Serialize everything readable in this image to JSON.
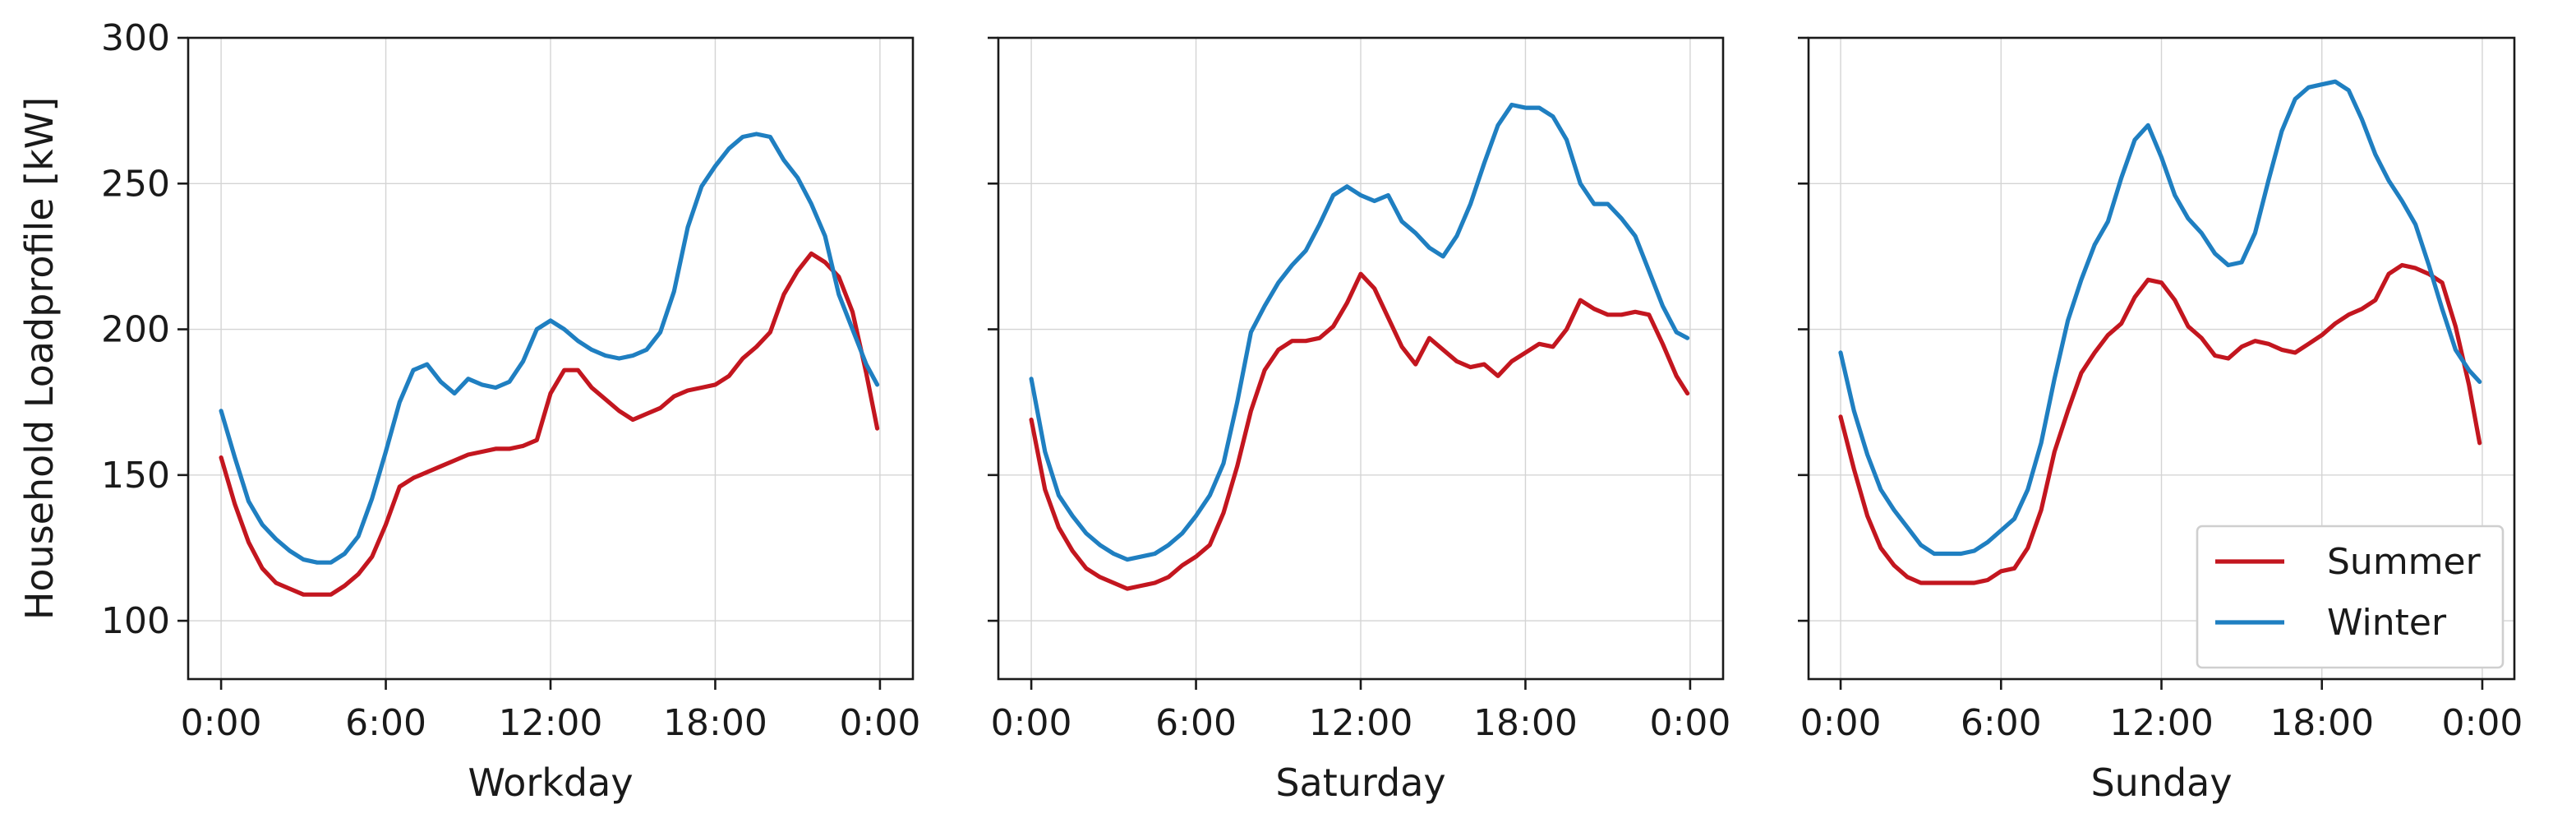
{
  "chart_data": {
    "type": "line",
    "layout": "3 panels side by side, shared y-axis",
    "ylabel": "Household Loadprofile [kW]",
    "ylim": [
      80,
      300
    ],
    "yticks": [
      "100",
      "150",
      "200",
      "250",
      "300"
    ],
    "xticks": [
      "0:00",
      "6:00",
      "12:00",
      "18:00",
      "0:00"
    ],
    "xlim_hours": [
      -1.2,
      25.2
    ],
    "grid": true,
    "legend": {
      "position": "lower-right",
      "panel": 2,
      "entries": [
        "Summer",
        "Winter"
      ]
    },
    "colors": {
      "Summer": "#c3161f",
      "Winter": "#1f7fc1"
    },
    "panels": [
      {
        "xlabel": "Workday",
        "series": [
          {
            "name": "Summer",
            "x": [
              0,
              0.5,
              1,
              1.5,
              2,
              2.5,
              3,
              3.5,
              4,
              4.5,
              5,
              5.5,
              6,
              6.5,
              7,
              7.5,
              8,
              8.5,
              9,
              9.5,
              10,
              10.5,
              11,
              11.5,
              12,
              12.5,
              13,
              13.5,
              14,
              14.5,
              15,
              15.5,
              16,
              16.5,
              17,
              17.5,
              18,
              18.5,
              19,
              19.5,
              20,
              20.5,
              21,
              21.5,
              22,
              22.5,
              23,
              23.5,
              23.9
            ],
            "y": [
              156,
              140,
              127,
              118,
              113,
              111,
              109,
              109,
              109,
              112,
              116,
              122,
              133,
              146,
              149,
              151,
              153,
              155,
              157,
              158,
              159,
              159,
              160,
              162,
              178,
              186,
              186,
              180,
              176,
              172,
              169,
              171,
              173,
              177,
              179,
              180,
              181,
              184,
              190,
              194,
              199,
              212,
              220,
              226,
              223,
              218,
              206,
              185,
              166
            ]
          },
          {
            "name": "Winter",
            "x": [
              0,
              0.5,
              1,
              1.5,
              2,
              2.5,
              3,
              3.5,
              4,
              4.5,
              5,
              5.5,
              6,
              6.5,
              7,
              7.5,
              8,
              8.5,
              9,
              9.5,
              10,
              10.5,
              11,
              11.5,
              12,
              12.5,
              13,
              13.5,
              14,
              14.5,
              15,
              15.5,
              16,
              16.5,
              17,
              17.5,
              18,
              18.5,
              19,
              19.5,
              20,
              20.5,
              21,
              21.5,
              22,
              22.5,
              23,
              23.5,
              23.9
            ],
            "y": [
              172,
              156,
              141,
              133,
              128,
              124,
              121,
              120,
              120,
              123,
              129,
              142,
              158,
              175,
              186,
              188,
              182,
              178,
              183,
              181,
              180,
              182,
              189,
              200,
              203,
              200,
              196,
              193,
              191,
              190,
              191,
              193,
              199,
              213,
              235,
              249,
              256,
              262,
              266,
              267,
              266,
              258,
              252,
              243,
              232,
              212,
              200,
              188,
              181
            ]
          }
        ]
      },
      {
        "xlabel": "Saturday",
        "series": [
          {
            "name": "Summer",
            "x": [
              0,
              0.5,
              1,
              1.5,
              2,
              2.5,
              3,
              3.5,
              4,
              4.5,
              5,
              5.5,
              6,
              6.5,
              7,
              7.5,
              8,
              8.5,
              9,
              9.5,
              10,
              10.5,
              11,
              11.5,
              12,
              12.5,
              13,
              13.5,
              14,
              14.5,
              15,
              15.5,
              16,
              16.5,
              17,
              17.5,
              18,
              18.5,
              19,
              19.5,
              20,
              20.5,
              21,
              21.5,
              22,
              22.5,
              23,
              23.5,
              23.9
            ],
            "y": [
              169,
              145,
              132,
              124,
              118,
              115,
              113,
              111,
              112,
              113,
              115,
              119,
              122,
              126,
              137,
              153,
              172,
              186,
              193,
              196,
              196,
              197,
              201,
              209,
              219,
              214,
              204,
              194,
              188,
              197,
              193,
              189,
              187,
              188,
              184,
              189,
              192,
              195,
              194,
              200,
              210,
              207,
              205,
              205,
              206,
              205,
              195,
              184,
              178
            ]
          },
          {
            "name": "Winter",
            "x": [
              0,
              0.5,
              1,
              1.5,
              2,
              2.5,
              3,
              3.5,
              4,
              4.5,
              5,
              5.5,
              6,
              6.5,
              7,
              7.5,
              8,
              8.5,
              9,
              9.5,
              10,
              10.5,
              11,
              11.5,
              12,
              12.5,
              13,
              13.5,
              14,
              14.5,
              15,
              15.5,
              16,
              16.5,
              17,
              17.5,
              18,
              18.5,
              19,
              19.5,
              20,
              20.5,
              21,
              21.5,
              22,
              22.5,
              23,
              23.5,
              23.9
            ],
            "y": [
              183,
              158,
              143,
              136,
              130,
              126,
              123,
              121,
              122,
              123,
              126,
              130,
              136,
              143,
              154,
              175,
              199,
              208,
              216,
              222,
              227,
              236,
              246,
              249,
              246,
              244,
              246,
              237,
              233,
              228,
              225,
              232,
              243,
              257,
              270,
              277,
              276,
              276,
              273,
              265,
              250,
              243,
              243,
              238,
              232,
              220,
              208,
              199,
              197
            ]
          }
        ]
      },
      {
        "xlabel": "Sunday",
        "series": [
          {
            "name": "Summer",
            "x": [
              0,
              0.5,
              1,
              1.5,
              2,
              2.5,
              3,
              3.5,
              4,
              4.5,
              5,
              5.5,
              6,
              6.5,
              7,
              7.5,
              8,
              8.5,
              9,
              9.5,
              10,
              10.5,
              11,
              11.5,
              12,
              12.5,
              13,
              13.5,
              14,
              14.5,
              15,
              15.5,
              16,
              16.5,
              17,
              17.5,
              18,
              18.5,
              19,
              19.5,
              20,
              20.5,
              21,
              21.5,
              22,
              22.5,
              23,
              23.5,
              23.9
            ],
            "y": [
              170,
              152,
              136,
              125,
              119,
              115,
              113,
              113,
              113,
              113,
              113,
              114,
              117,
              118,
              125,
              138,
              158,
              172,
              185,
              192,
              198,
              202,
              211,
              217,
              216,
              210,
              201,
              197,
              191,
              190,
              194,
              196,
              195,
              193,
              192,
              195,
              198,
              202,
              205,
              207,
              210,
              219,
              222,
              221,
              219,
              216,
              201,
              181,
              161
            ]
          },
          {
            "name": "Winter",
            "x": [
              0,
              0.5,
              1,
              1.5,
              2,
              2.5,
              3,
              3.5,
              4,
              4.5,
              5,
              5.5,
              6,
              6.5,
              7,
              7.5,
              8,
              8.5,
              9,
              9.5,
              10,
              10.5,
              11,
              11.5,
              12,
              12.5,
              13,
              13.5,
              14,
              14.5,
              15,
              15.5,
              16,
              16.5,
              17,
              17.5,
              18,
              18.5,
              19,
              19.5,
              20,
              20.5,
              21,
              21.5,
              22,
              22.5,
              23,
              23.5,
              23.9
            ],
            "y": [
              192,
              172,
              157,
              145,
              138,
              132,
              126,
              123,
              123,
              123,
              124,
              127,
              131,
              135,
              145,
              161,
              183,
              203,
              217,
              229,
              237,
              252,
              265,
              270,
              259,
              246,
              238,
              233,
              226,
              222,
              223,
              233,
              251,
              268,
              279,
              283,
              284,
              285,
              282,
              272,
              260,
              251,
              244,
              236,
              222,
              207,
              193,
              186,
              182
            ]
          }
        ]
      }
    ]
  }
}
